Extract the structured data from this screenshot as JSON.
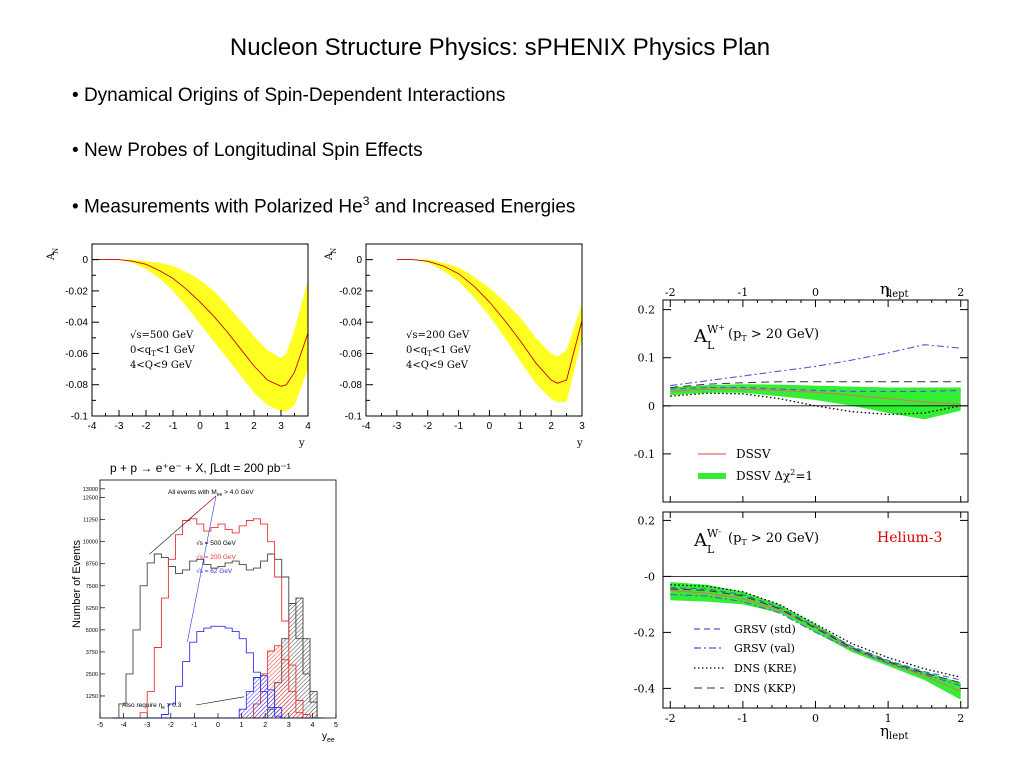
{
  "slide": {
    "title": "Nucleon Structure Physics: sPHENIX Physics Plan",
    "bullets": [
      {
        "text": "Dynamical Origins of Spin-Dependent Interactions"
      },
      {
        "text": "New Probes of Longitudinal Spin Effects"
      },
      {
        "text": "Measurements with Polarized He",
        "sup": "3",
        "after": " and Increased Energies"
      }
    ]
  },
  "colors": {
    "band_yellow": "#ffff22",
    "curve_red": "#cc0000",
    "band_green": "#33ee33",
    "dssv_red": "#ee6666",
    "grsv_blue": "#5555dd",
    "helium_red": "#dd0000",
    "hist_gray": "#444444",
    "hist_red": "#ee3333",
    "hist_blue": "#3333ee"
  },
  "chart_data": [
    {
      "type": "area",
      "ylabel": "A",
      "ylabel_sub": "N",
      "xlabel": "y",
      "xlim": [
        -4,
        4
      ],
      "ylim": [
        -0.1,
        0.01
      ],
      "xticks": [
        "-4",
        "-3",
        "-2",
        "-1",
        "0",
        "1",
        "2",
        "3",
        "4"
      ],
      "yticks": [
        "0",
        "-0.02",
        "-0.04",
        "-0.06",
        "-0.08",
        "-0.1"
      ],
      "legend_lines": [
        "√s=500 GeV",
        "0<q",
        "<1 GeV",
        "4<Q<9 GeV"
      ],
      "legend_sub": "T",
      "x": [
        -4,
        -3,
        -2.5,
        -2,
        -1.5,
        -1,
        -0.5,
        0,
        0.5,
        1,
        1.5,
        2,
        2.5,
        3,
        3.2,
        3.5,
        4
      ],
      "center": [
        0,
        0,
        -0.001,
        -0.003,
        -0.007,
        -0.012,
        -0.019,
        -0.027,
        -0.036,
        -0.046,
        -0.057,
        -0.068,
        -0.077,
        -0.081,
        -0.08,
        -0.072,
        -0.047
      ],
      "upper": [
        0,
        0,
        0,
        -0.001,
        -0.002,
        -0.004,
        -0.008,
        -0.013,
        -0.02,
        -0.029,
        -0.039,
        -0.049,
        -0.058,
        -0.063,
        -0.06,
        -0.045,
        -0.013
      ],
      "lower": [
        0,
        0,
        -0.002,
        -0.006,
        -0.012,
        -0.02,
        -0.03,
        -0.041,
        -0.052,
        -0.063,
        -0.074,
        -0.085,
        -0.093,
        -0.097,
        -0.097,
        -0.093,
        -0.07
      ]
    },
    {
      "type": "area",
      "ylabel": "A",
      "ylabel_sub": "N",
      "xlabel": "y",
      "xlim": [
        -4,
        3
      ],
      "ylim": [
        -0.1,
        0.01
      ],
      "xticks": [
        "-4",
        "-3",
        "-2",
        "-1",
        "0",
        "1",
        "2",
        "3"
      ],
      "yticks": [
        "0",
        "-0.02",
        "-0.04",
        "-0.06",
        "-0.08",
        "-0.1"
      ],
      "legend_lines": [
        "√s=200 GeV",
        "0<q",
        "<1 GeV",
        "4<Q<9 GeV"
      ],
      "legend_sub": "T",
      "x": [
        -3,
        -2.5,
        -2,
        -1.5,
        -1,
        -0.5,
        0,
        0.5,
        1,
        1.5,
        2,
        2.2,
        2.5,
        3
      ],
      "center": [
        0,
        0,
        -0.001,
        -0.004,
        -0.009,
        -0.017,
        -0.027,
        -0.039,
        -0.052,
        -0.066,
        -0.077,
        -0.079,
        -0.077,
        -0.039
      ],
      "upper": [
        0,
        0,
        0,
        -0.002,
        -0.005,
        -0.011,
        -0.018,
        -0.027,
        -0.037,
        -0.05,
        -0.06,
        -0.062,
        -0.058,
        -0.028
      ],
      "lower": [
        0,
        0,
        -0.002,
        -0.007,
        -0.014,
        -0.024,
        -0.036,
        -0.05,
        -0.065,
        -0.079,
        -0.089,
        -0.091,
        -0.091,
        -0.05
      ]
    },
    {
      "type": "line",
      "panel": "W+",
      "top_axis_label": "η",
      "top_axis_sub": "lept",
      "xticks": [
        "-2",
        "-1",
        "0",
        "1",
        "2"
      ],
      "xlim": [
        -2.1,
        2.1
      ],
      "ylim": [
        -0.2,
        0.22
      ],
      "yticks": [
        "0.2",
        "0.1",
        "0",
        "-0.1"
      ],
      "label_main": "A",
      "label_sup": "W",
      "label_sup2": "+",
      "label_sub": "L",
      "label_cut": "(p",
      "label_cut_sub": "T",
      "label_cut_end": " > 20 GeV)",
      "legend": [
        {
          "name": "DSSV"
        },
        {
          "name": "DSSV Δχ",
          "sup": "2",
          "after": "=1"
        }
      ],
      "x": [
        -2,
        -1.5,
        -1,
        -0.5,
        0,
        0.5,
        1,
        1.5,
        2
      ],
      "series": [
        {
          "key": "dssv",
          "values": [
            0.03,
            0.035,
            0.035,
            0.032,
            0.028,
            0.022,
            0.015,
            0.008,
            0.003
          ]
        },
        {
          "key": "band_hi",
          "values": [
            0.038,
            0.043,
            0.045,
            0.044,
            0.042,
            0.04,
            0.038,
            0.038,
            0.038
          ]
        },
        {
          "key": "band_lo",
          "values": [
            0.022,
            0.027,
            0.027,
            0.02,
            0.012,
            0.0,
            -0.015,
            -0.028,
            -0.01
          ]
        },
        {
          "key": "grsv_val",
          "values": [
            0.042,
            0.052,
            0.062,
            0.072,
            0.082,
            0.095,
            0.11,
            0.127,
            0.12
          ]
        },
        {
          "key": "dns_kkp",
          "values": [
            0.038,
            0.045,
            0.048,
            0.05,
            0.05,
            0.05,
            0.05,
            0.05,
            0.05
          ]
        },
        {
          "key": "grsv_std",
          "values": [
            0.035,
            0.038,
            0.038,
            0.035,
            0.032,
            0.03,
            0.03,
            0.03,
            0.032
          ]
        },
        {
          "key": "dns_kre",
          "values": [
            0.02,
            0.026,
            0.025,
            0.015,
            0.0,
            -0.012,
            -0.018,
            -0.015,
            0.0
          ]
        }
      ]
    },
    {
      "type": "line",
      "panel": "W-",
      "bottom_axis_label": "η",
      "bottom_axis_sub": "lept",
      "xticks": [
        "-2",
        "-1",
        "0",
        "1",
        "2"
      ],
      "xlim": [
        -2.1,
        2.1
      ],
      "ylim": [
        -0.47,
        0.23
      ],
      "yticks": [
        "0.2",
        "-0",
        "-0.2",
        "-0.4"
      ],
      "label_main": "A",
      "label_sup": "W",
      "label_sup2": "-",
      "label_sub": "L",
      "label_cut": "(p",
      "label_cut_sub": "T",
      "label_cut_end": " > 20 GeV)",
      "annotation": "Helium-3",
      "legend": [
        {
          "name": "GRSV (std)"
        },
        {
          "name": "GRSV (val)"
        },
        {
          "name": "DNS (KRE)"
        },
        {
          "name": "DNS (KKP)"
        }
      ],
      "x": [
        -2,
        -1.5,
        -1,
        -0.5,
        0,
        0.5,
        1,
        1.5,
        2
      ],
      "series": [
        {
          "key": "band_hi",
          "values": [
            -0.02,
            -0.03,
            -0.055,
            -0.1,
            -0.17,
            -0.25,
            -0.3,
            -0.34,
            -0.38
          ]
        },
        {
          "key": "band_lo",
          "values": [
            -0.085,
            -0.09,
            -0.1,
            -0.13,
            -0.2,
            -0.27,
            -0.32,
            -0.37,
            -0.44
          ]
        },
        {
          "key": "dssv",
          "values": [
            -0.05,
            -0.06,
            -0.08,
            -0.12,
            -0.18,
            -0.26,
            -0.31,
            -0.355,
            -0.41
          ]
        },
        {
          "key": "grsv_std",
          "values": [
            -0.04,
            -0.045,
            -0.065,
            -0.11,
            -0.18,
            -0.25,
            -0.3,
            -0.34,
            -0.37
          ]
        },
        {
          "key": "grsv_val",
          "values": [
            -0.065,
            -0.07,
            -0.09,
            -0.13,
            -0.2,
            -0.26,
            -0.31,
            -0.35,
            -0.39
          ]
        },
        {
          "key": "dns_kre",
          "values": [
            -0.03,
            -0.035,
            -0.055,
            -0.1,
            -0.17,
            -0.24,
            -0.29,
            -0.33,
            -0.36
          ]
        },
        {
          "key": "dns_kkp",
          "values": [
            -0.045,
            -0.05,
            -0.07,
            -0.115,
            -0.185,
            -0.255,
            -0.305,
            -0.345,
            -0.38
          ]
        }
      ]
    },
    {
      "type": "bar",
      "title": "p + p → e⁺e⁻ + X, ∫Ldt = 200 pb⁻¹",
      "ylabel": "Number of Events",
      "xlabel": "y",
      "xlabel_sub": "ee",
      "xlim": [
        -5,
        5
      ],
      "ylim": [
        0,
        13500
      ],
      "xticks": [
        "-5",
        "-4",
        "-3",
        "-2",
        "-1",
        "0",
        "1",
        "2",
        "3",
        "4",
        "5"
      ],
      "yticks": [
        "2500",
        "5000",
        "7500",
        "10000",
        "12500"
      ],
      "yticks_minor": [
        "1250",
        "3750",
        "6250",
        "8750",
        "11250",
        "13000"
      ],
      "annotation_top": "All events with M",
      "annotation_top_sub": "ee",
      "annotation_top_end": " > 4.0 GeV",
      "annotation_bottom": "Also require η",
      "annotation_bottom_sub": "e",
      "annotation_bottom_end": " > 0.3",
      "legend": [
        {
          "name": "√s = 500 GeV"
        },
        {
          "name": "√s = 200 GeV"
        },
        {
          "name": "√s = 62 GeV"
        }
      ],
      "bin_edges": [
        -4.5,
        -4.2,
        -3.9,
        -3.6,
        -3.3,
        -3.0,
        -2.7,
        -2.4,
        -2.1,
        -1.8,
        -1.5,
        -1.2,
        -0.9,
        -0.6,
        -0.3,
        0,
        0.3,
        0.6,
        0.9,
        1.2,
        1.5,
        1.8,
        2.1,
        2.4,
        2.7,
        3.0,
        3.3,
        3.6,
        3.9,
        4.2,
        4.5
      ],
      "series": [
        {
          "name": "√s = 500 GeV",
          "values": [
            0,
            800,
            2500,
            5000,
            7500,
            8800,
            9300,
            9100,
            8600,
            8200,
            8400,
            8900,
            9000,
            8700,
            8500,
            8600,
            8800,
            8900,
            8700,
            8400,
            8500,
            8900,
            9300,
            9000,
            8000,
            6500,
            4500,
            2500,
            900,
            0
          ]
        },
        {
          "name": "√s = 200 GeV",
          "values": [
            0,
            0,
            0,
            0,
            300,
            1500,
            4000,
            6800,
            9000,
            10400,
            11200,
            11300,
            11000,
            10600,
            10800,
            11000,
            10700,
            10500,
            10900,
            11200,
            11300,
            11000,
            10000,
            8000,
            5500,
            3000,
            1000,
            200,
            0,
            0
          ]
        },
        {
          "name": "√s = 62 GeV",
          "values": [
            0,
            0,
            0,
            0,
            0,
            0,
            0,
            200,
            800,
            1800,
            3200,
            4300,
            4900,
            5100,
            5200,
            5200,
            5100,
            4900,
            4500,
            3700,
            2600,
            1500,
            600,
            100,
            0,
            0,
            0,
            0,
            0,
            0
          ]
        },
        {
          "name": "500 GeV cut",
          "values": [
            0,
            0,
            0,
            0,
            0,
            0,
            0,
            0,
            0,
            0,
            0,
            0,
            0,
            0,
            0,
            0,
            0,
            0,
            0,
            0,
            0,
            0,
            500,
            2000,
            4500,
            6500,
            6800,
            4500,
            1500,
            0
          ]
        },
        {
          "name": "200 GeV cut",
          "values": [
            0,
            0,
            0,
            0,
            0,
            0,
            0,
            0,
            0,
            0,
            0,
            0,
            0,
            0,
            0,
            0,
            0,
            0,
            0,
            0,
            800,
            2500,
            3800,
            4100,
            3300,
            1500,
            300,
            0,
            0,
            0
          ]
        },
        {
          "name": "62 GeV cut",
          "values": [
            0,
            0,
            0,
            0,
            0,
            0,
            0,
            0,
            0,
            0,
            0,
            0,
            0,
            0,
            0,
            0,
            0,
            0,
            500,
            1500,
            2300,
            2400,
            1600,
            600,
            0,
            0,
            0,
            0,
            0,
            0
          ]
        }
      ]
    }
  ]
}
